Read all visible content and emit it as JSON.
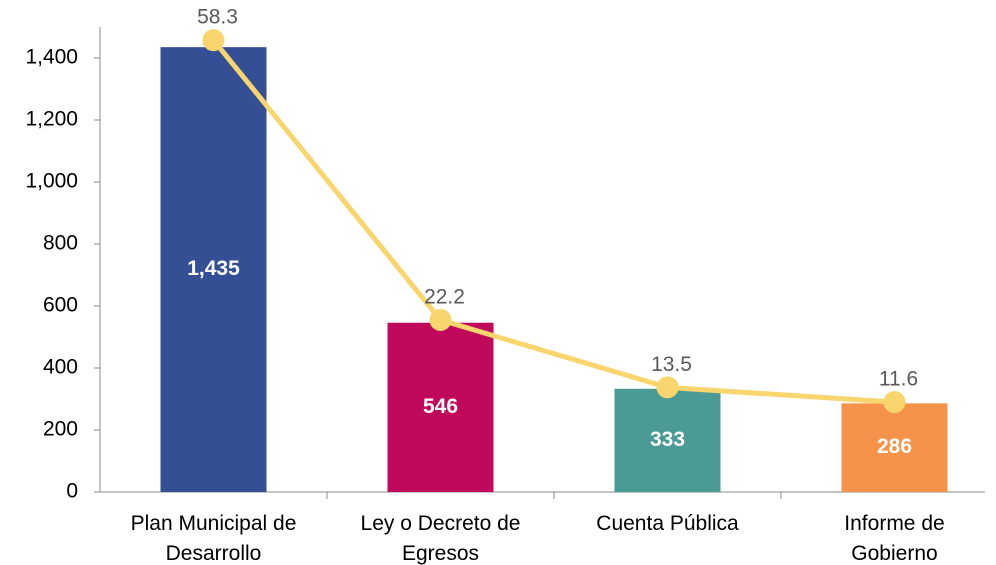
{
  "chart_data": {
    "type": "bar_line",
    "categories": [
      "Plan Municipal de Desarrollo",
      "Ley o Decreto de Egresos",
      "Cuenta Pública",
      "Informe de Gobierno"
    ],
    "series": [
      {
        "type": "bar",
        "colors": [
          "#344f94",
          "#c0095b",
          "#4a9a96",
          "#f5934a"
        ],
        "values": [
          1435,
          546,
          333,
          286
        ],
        "value_labels": [
          "1,435",
          "546",
          "333",
          "286"
        ]
      },
      {
        "type": "line",
        "color": "#f9d56e",
        "axis": "y2",
        "values": [
          58.3,
          22.2,
          13.5,
          11.6
        ]
      }
    ],
    "ylim": [
      0,
      1500
    ],
    "yticks": [
      0,
      200,
      400,
      600,
      800,
      {
        "value": 1000,
        "label": "1,000"
      },
      {
        "value": 1200,
        "label": "1,200"
      },
      {
        "value": 1400,
        "label": "1,400"
      }
    ],
    "y2lim": [
      0,
      60
    ]
  }
}
